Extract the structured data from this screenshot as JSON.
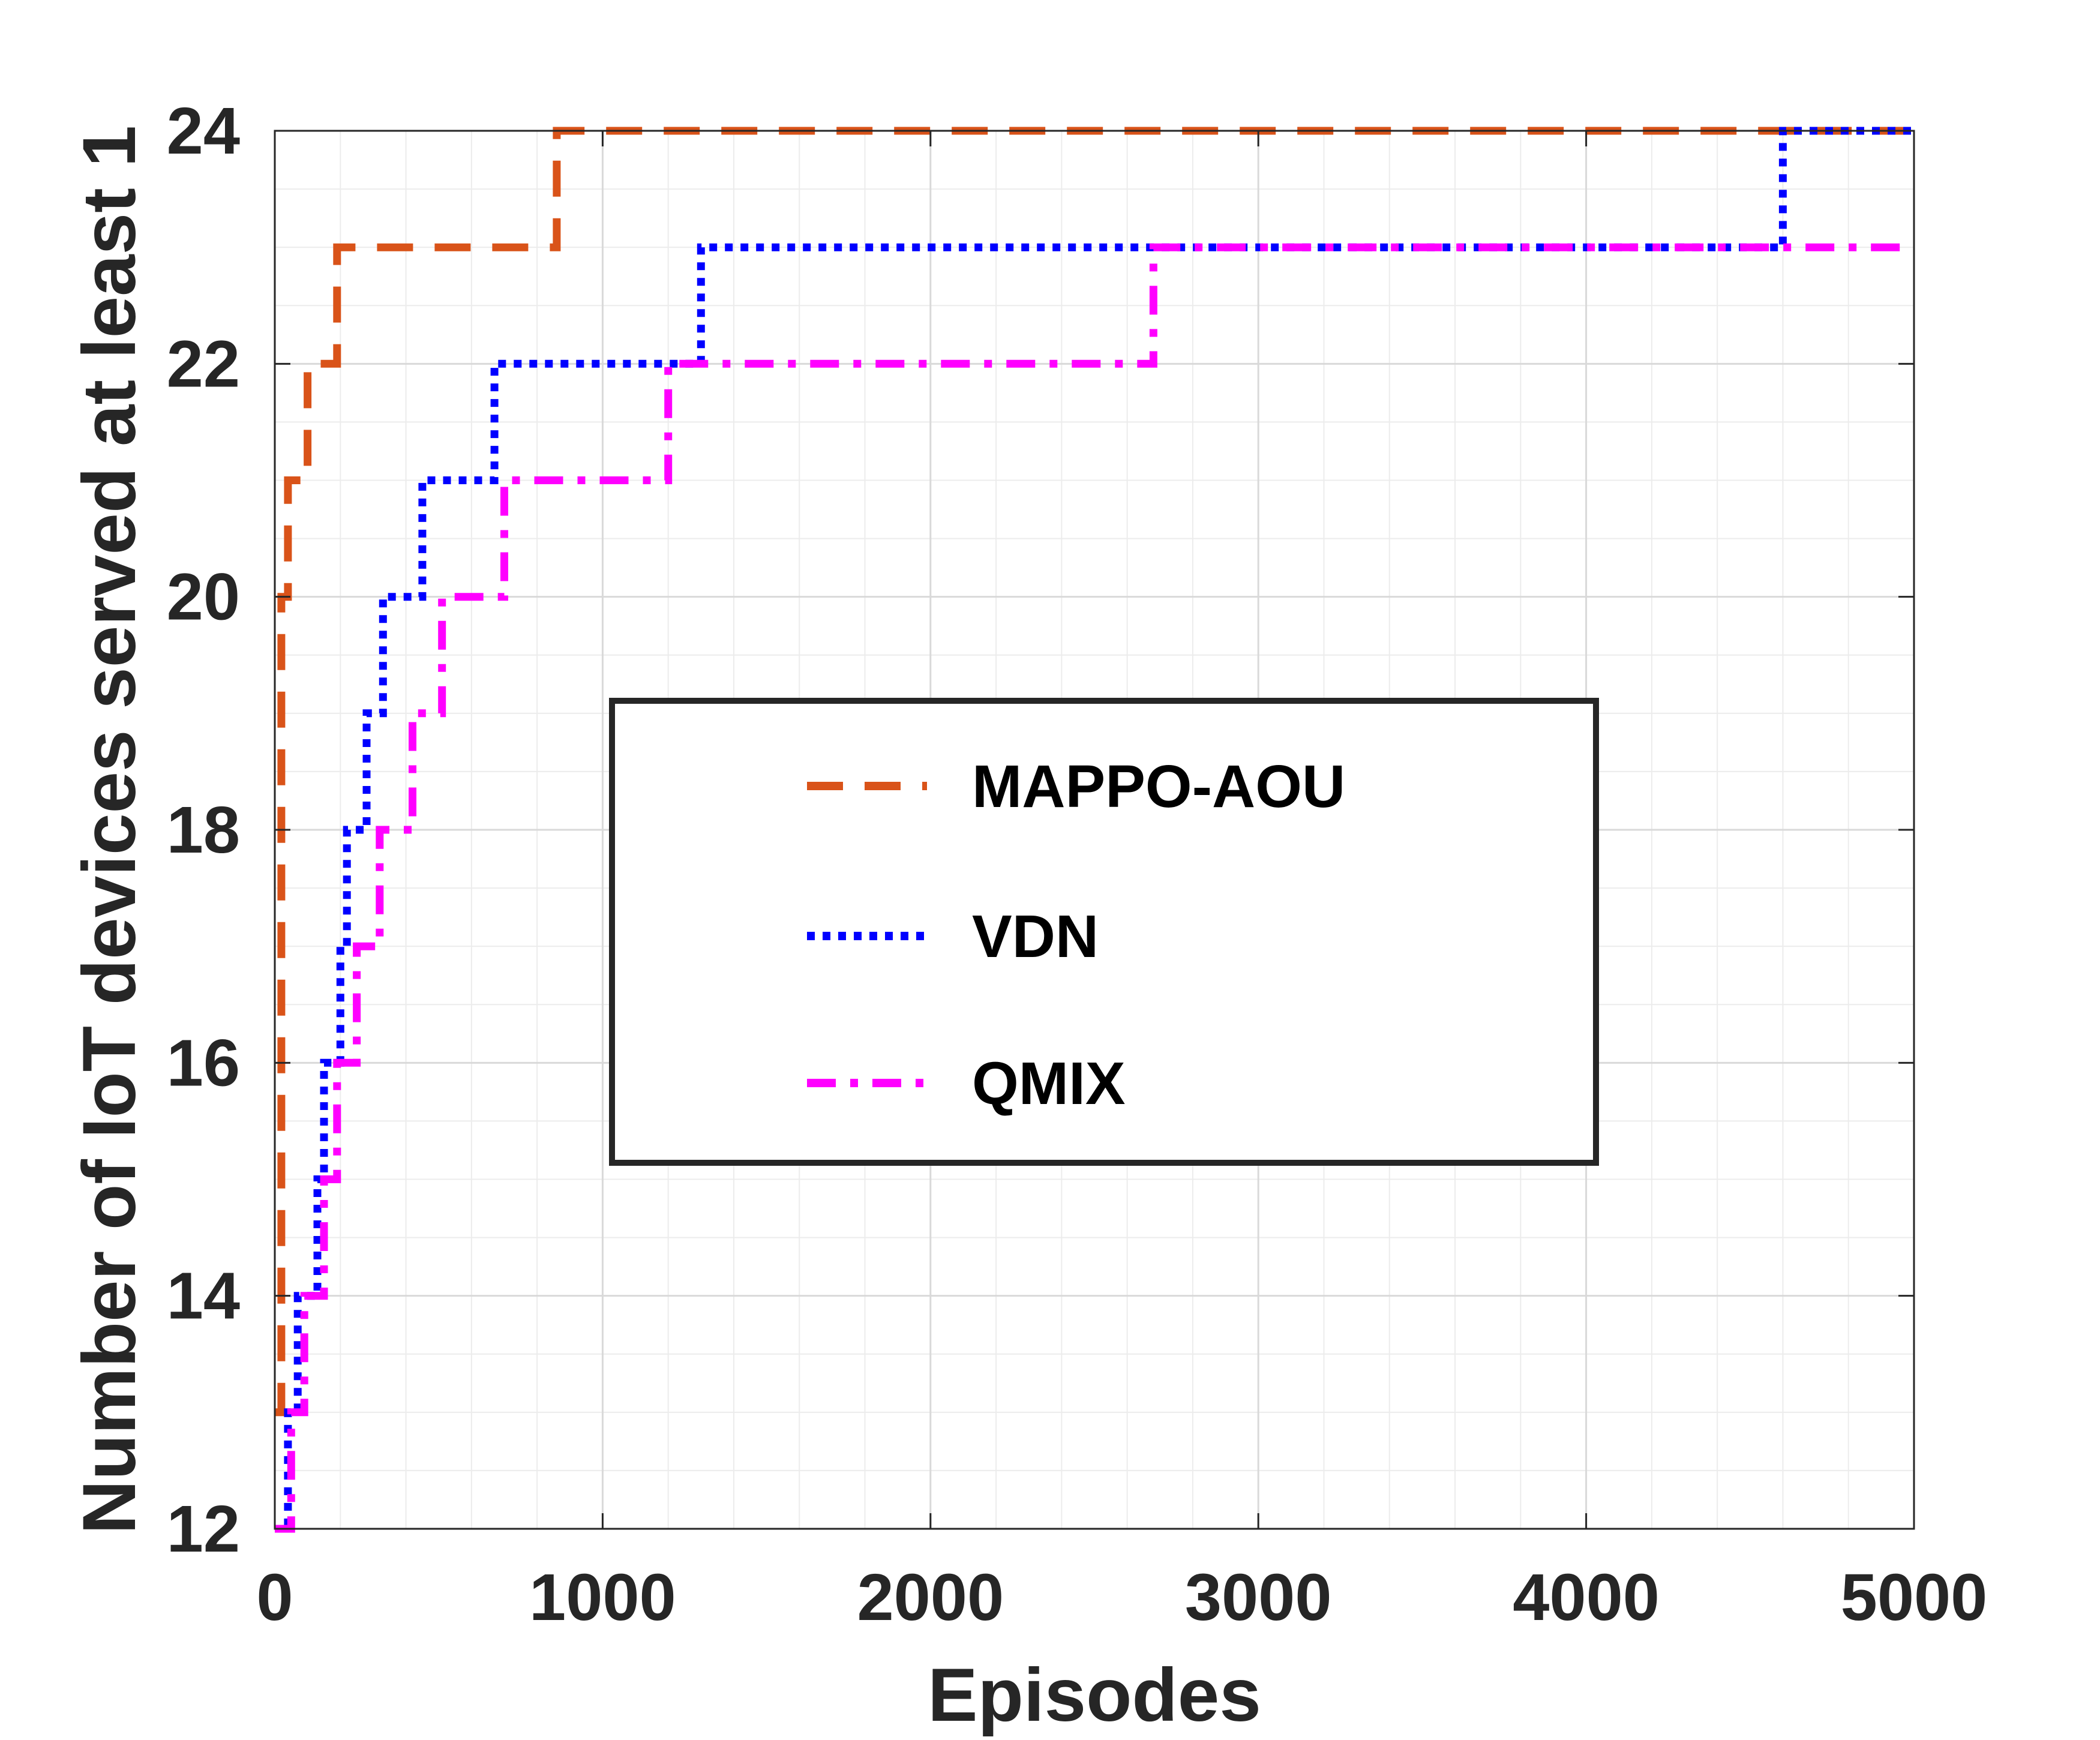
{
  "chart_data": {
    "type": "line",
    "title": "",
    "xlabel": "Episodes",
    "ylabel": "Number of IoT devices served at least 1",
    "xlim": [
      0,
      5000
    ],
    "ylim": [
      12,
      24
    ],
    "xticks": [
      0,
      1000,
      2000,
      3000,
      4000,
      5000
    ],
    "yticks": [
      12,
      14,
      16,
      18,
      20,
      22,
      24
    ],
    "grid": true,
    "minor_grid": true,
    "legend_position": "center",
    "series": [
      {
        "name": "MAPPO-AOU",
        "color": "#D95319",
        "style": "dashed",
        "points": [
          [
            0,
            13
          ],
          [
            20,
            13
          ],
          [
            20,
            20
          ],
          [
            40,
            20
          ],
          [
            40,
            21
          ],
          [
            100,
            21
          ],
          [
            100,
            22
          ],
          [
            190,
            22
          ],
          [
            190,
            23
          ],
          [
            860,
            23
          ],
          [
            860,
            24
          ],
          [
            5000,
            24
          ]
        ]
      },
      {
        "name": "VDN",
        "color": "#0000FF",
        "style": "dotted",
        "points": [
          [
            0,
            12
          ],
          [
            40,
            12
          ],
          [
            40,
            13
          ],
          [
            70,
            13
          ],
          [
            70,
            14
          ],
          [
            130,
            14
          ],
          [
            130,
            15
          ],
          [
            150,
            15
          ],
          [
            150,
            16
          ],
          [
            200,
            16
          ],
          [
            200,
            17
          ],
          [
            220,
            17
          ],
          [
            220,
            18
          ],
          [
            280,
            18
          ],
          [
            280,
            19
          ],
          [
            330,
            19
          ],
          [
            330,
            20
          ],
          [
            450,
            20
          ],
          [
            450,
            21
          ],
          [
            670,
            21
          ],
          [
            670,
            22
          ],
          [
            1300,
            22
          ],
          [
            1300,
            23
          ],
          [
            4600,
            23
          ],
          [
            4600,
            24
          ],
          [
            5000,
            24
          ]
        ]
      },
      {
        "name": "QMIX",
        "color": "#FF00FF",
        "style": "dashdot",
        "points": [
          [
            0,
            12
          ],
          [
            50,
            12
          ],
          [
            50,
            13
          ],
          [
            90,
            13
          ],
          [
            90,
            14
          ],
          [
            150,
            14
          ],
          [
            150,
            15
          ],
          [
            190,
            15
          ],
          [
            190,
            16
          ],
          [
            250,
            16
          ],
          [
            250,
            17
          ],
          [
            320,
            17
          ],
          [
            320,
            18
          ],
          [
            420,
            18
          ],
          [
            420,
            19
          ],
          [
            510,
            19
          ],
          [
            510,
            20
          ],
          [
            700,
            20
          ],
          [
            700,
            21
          ],
          [
            1200,
            21
          ],
          [
            1200,
            22
          ],
          [
            2680,
            22
          ],
          [
            2680,
            23
          ],
          [
            5000,
            23
          ]
        ]
      }
    ]
  }
}
